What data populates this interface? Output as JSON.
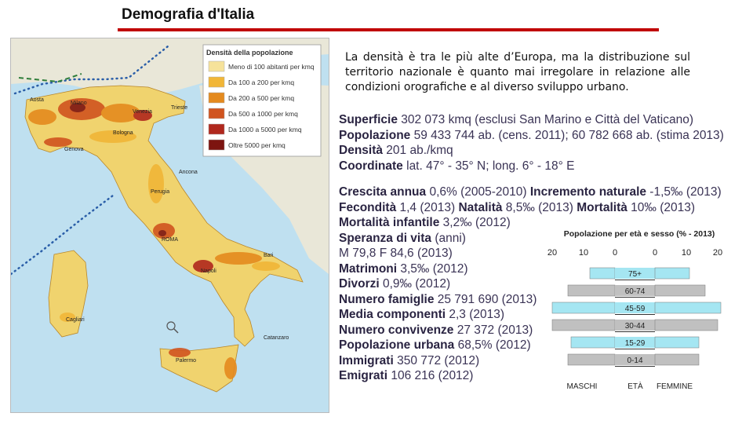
{
  "slide": {
    "title": "Demografia d'Italia",
    "lead": "La densità è tra le più alte d’Europa, ma la distribuzione sul territorio nazionale è quanto mai irregolare in relazione alle condizioni orografiche e al diverso sviluppo urbano.",
    "colors": {
      "accent": "#c00000",
      "stats_text": "#3a3355"
    }
  },
  "map": {
    "legend_title": "Densità della popolazione",
    "legend": [
      {
        "label": "Meno di 100 abitanti per kmq",
        "color": "#f6e29a"
      },
      {
        "label": "Da 100 a 200 per kmq",
        "color": "#f1b637"
      },
      {
        "label": "Da 200 a 500 per kmq",
        "color": "#e48a1e"
      },
      {
        "label": "Da 500 a 1000 per kmq",
        "color": "#d0541f"
      },
      {
        "label": "Da 1000 a 5000 per kmq",
        "color": "#b0281d"
      },
      {
        "label": "Oltre 5000 per kmq",
        "color": "#7d1410"
      }
    ],
    "cities": [
      "Aosta",
      "Milano",
      "Venezia",
      "Trieste",
      "Genova",
      "Bologna",
      "Ancona",
      "Perugia",
      "ROMA",
      "Napoli",
      "Bari",
      "Cagliari",
      "Palermo",
      "Catanzaro"
    ],
    "colors": {
      "sea": "#bfe0f0",
      "land_bg": "#e9e7d8"
    }
  },
  "stats": [
    [
      {
        "k": "Superficie",
        "v": " 302 073 kmq (esclusi San Marino e Città del Vaticano)"
      }
    ],
    [
      {
        "k": "Popolazione",
        "v": " 59 433 744 ab. (cens. 2011); 60 782 668 ab. (stima 2013)"
      }
    ],
    [
      {
        "k": "Densità",
        "v": " 201 ab./kmq"
      }
    ],
    [
      {
        "k": "Coordinate",
        "v": " lat. 47° - 35° N;  long. 6° - 18° E"
      }
    ],
    [
      {
        "k": "Crescita annua",
        "v": " 0,6% (2005-2010)  "
      },
      {
        "k": "Incremento naturale",
        "v": " -1,5‰ (2013)"
      }
    ],
    [
      {
        "k": "Fecondità",
        "v": " 1,4 (2013)  "
      },
      {
        "k": "Natalità",
        "v": " 8,5‰ (2013)  "
      },
      {
        "k": "Mortalità",
        "v": " 10‰ (2013)"
      }
    ],
    [
      {
        "k": "Mortalità infantile",
        "v": " 3,2‰ (2012)"
      }
    ],
    [
      {
        "k": "Speranza di vita",
        "v": " (anni)"
      }
    ],
    [
      {
        "k": "",
        "v": "M 79,8  F 84,6 (2013)"
      }
    ],
    [
      {
        "k": "Matrimoni",
        "v": " 3,5‰ (2012)"
      }
    ],
    [
      {
        "k": "Divorzi",
        "v": " 0,9‰ (2012)"
      }
    ],
    [
      {
        "k": "Numero famiglie",
        "v": " 25 791 690 (2013)"
      }
    ],
    [
      {
        "k": "Media componenti",
        "v": " 2,3 (2013)"
      }
    ],
    [
      {
        "k": "Numero convivenze",
        "v": " 27 372 (2013)"
      }
    ],
    [
      {
        "k": "Popolazione urbana",
        "v": " 68,5% (2012)"
      }
    ],
    [
      {
        "k": "Immigrati",
        "v": " 350 772 (2012)"
      }
    ],
    [
      {
        "k": "Emigrati",
        "v": " 106 216 (2012)"
      }
    ]
  ],
  "chart_data": {
    "type": "bar",
    "title": "Popolazione per età e sesso (% - 2013)",
    "xlabel_left": "MASCHI",
    "xlabel_center": "ETÀ",
    "xlabel_right": "FEMMINE",
    "ticks_left": [
      "20",
      "10",
      "0"
    ],
    "ticks_right": [
      "0",
      "10",
      "20"
    ],
    "xlim": [
      0,
      20
    ],
    "categories": [
      "75+",
      "60-74",
      "45-59",
      "30-44",
      "15-29",
      "0-14"
    ],
    "series": [
      {
        "name": "MASCHI",
        "values": [
          8,
          15,
          20,
          20,
          14,
          15
        ]
      },
      {
        "name": "FEMMINE",
        "values": [
          11,
          16,
          21,
          20,
          14,
          14
        ]
      }
    ],
    "row_colors": [
      "#a5e6f2",
      "#c0c0c0",
      "#a5e6f2",
      "#c0c0c0",
      "#a5e6f2",
      "#c0c0c0"
    ]
  }
}
